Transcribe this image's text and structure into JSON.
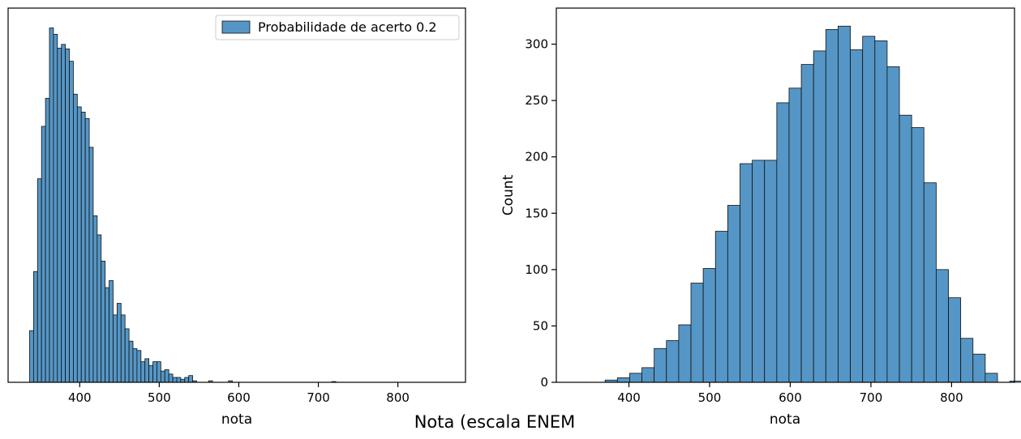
{
  "figure": {
    "suptitle": "Nota (escala ENEM"
  },
  "colors": {
    "bar_fill": "#5596c6",
    "bar_edge": "#111111",
    "axis": "#000000"
  },
  "chart_data": [
    {
      "type": "bar",
      "subtype": "histogram",
      "title": "",
      "xlabel": "nota",
      "ylabel": "",
      "xlim": [
        310,
        885
      ],
      "ylim": [
        0,
        1
      ],
      "xticks": [
        400,
        500,
        600,
        700,
        800
      ],
      "yticks": [],
      "bin_start": 337,
      "bin_width": 5,
      "values": [
        0.138,
        0.296,
        0.544,
        0.684,
        0.759,
        0.947,
        0.93,
        0.893,
        0.903,
        0.891,
        0.858,
        0.77,
        0.736,
        0.722,
        0.705,
        0.628,
        0.445,
        0.394,
        0.324,
        0.253,
        0.272,
        0.18,
        0.211,
        0.18,
        0.143,
        0.11,
        0.09,
        0.085,
        0.055,
        0.063,
        0.045,
        0.055,
        0.055,
        0.03,
        0.034,
        0.022,
        0.013,
        0.013,
        0.008,
        0.013,
        0.018,
        0.004,
        0.0,
        0.0,
        0.0,
        0.004,
        0.0,
        0.0,
        0.0,
        0.0,
        0.004,
        0.0,
        0.0,
        0.0,
        0.0,
        0.0,
        0.0,
        0.0,
        0.0,
        0.0,
        0.0,
        0.0,
        0.0,
        0.0,
        0.0,
        0.0,
        0.0,
        0.0,
        0.0,
        0.0,
        0.0,
        0.0,
        0.0,
        0.0,
        0.0,
        0.0,
        0.002,
        0.0,
        0.0,
        0.0,
        0.0,
        0.0,
        0.0,
        0.0,
        0.0,
        0.0,
        0.0,
        0.0,
        0.0,
        0.0,
        0.0,
        0.0,
        0.0,
        0.0,
        0.0,
        0.0,
        0.0,
        0.0,
        0.0,
        0.0,
        0.0,
        0.0,
        0.0,
        0.0,
        0.0,
        0.0
      ],
      "legend": {
        "label": "Probabilidade de acerto 0.2",
        "position": "top-right"
      }
    },
    {
      "type": "bar",
      "subtype": "histogram",
      "title": "",
      "xlabel": "nota",
      "ylabel": "Count",
      "xlim": [
        310,
        878
      ],
      "ylim": [
        0,
        332
      ],
      "xticks": [
        400,
        500,
        600,
        700,
        800
      ],
      "yticks": [
        0,
        50,
        100,
        150,
        200,
        250,
        300
      ],
      "bin_start": 370.5,
      "bin_width": 15.2,
      "values": [
        2,
        4,
        8,
        13,
        30,
        37,
        51,
        88,
        101,
        134,
        157,
        194,
        197,
        197,
        248,
        261,
        282,
        294,
        313,
        316,
        295,
        307,
        303,
        280,
        237,
        226,
        177,
        100,
        75,
        39,
        25,
        8,
        0,
        1
      ],
      "legend": null
    }
  ]
}
